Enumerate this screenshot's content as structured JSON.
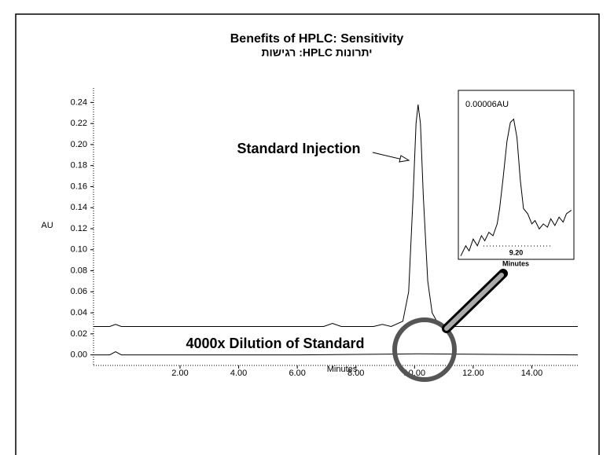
{
  "chart_data": [
    {
      "type": "line",
      "title": "Benefits of HPLC: Sensitivity",
      "subtitle": "יתרונות HPLC: רגישות",
      "x_label": "Minutes",
      "y_label": "AU",
      "annotations": [
        "Standard Injection",
        "4000x Dilution of Standard"
      ],
      "xlim": [
        -0.95,
        15.57
      ],
      "ylim": [
        -0.01,
        0.25
      ],
      "xticks": [
        {
          "value": 2,
          "label": "2.00"
        },
        {
          "value": 4,
          "label": "4.00"
        },
        {
          "value": 6,
          "label": "6.00"
        },
        {
          "value": 8,
          "label": "8.00"
        },
        {
          "value": 10,
          "label": "10.00"
        },
        {
          "value": 12,
          "label": "12.00"
        },
        {
          "value": 14,
          "label": "14.00"
        }
      ],
      "yticks": [
        {
          "value": 0,
          "label": "0.00"
        },
        0.02,
        0.04,
        0.06,
        0.08,
        {
          "value": 0.1,
          "label": "0.10"
        },
        0.12,
        0.14,
        0.16,
        0.18,
        {
          "value": 0.2,
          "label": "0.20"
        },
        0.22,
        0.24
      ],
      "series": [
        {
          "color": "#000000",
          "x": [
            -0.95,
            -0.4,
            -0.2,
            0.0,
            0.5,
            2,
            4,
            6,
            6.9,
            7.2,
            7.5,
            8.2,
            8.6,
            8.9,
            9.2,
            9.6,
            9.8,
            9.95,
            10.05,
            10.12,
            10.2,
            10.3,
            10.45,
            10.6,
            10.8,
            11.2,
            15.57
          ],
          "values": [
            0.027,
            0.027,
            0.029,
            0.027,
            0.027,
            0.027,
            0.027,
            0.027,
            0.027,
            0.03,
            0.027,
            0.027,
            0.027,
            0.029,
            0.027,
            0.032,
            0.06,
            0.15,
            0.22,
            0.238,
            0.22,
            0.15,
            0.07,
            0.04,
            0.03,
            0.027,
            0.027
          ]
        },
        {
          "color": "#000000",
          "x": [
            -0.95,
            -0.4,
            -0.2,
            0.0,
            0.5,
            6,
            10.1,
            15.57
          ],
          "values": [
            0,
            0,
            0.003,
            0,
            0,
            0,
            0.001,
            0
          ]
        }
      ]
    },
    {
      "type": "line",
      "annotation": "0.00006AU",
      "x_label": "Minutes",
      "xlim": [
        8.5,
        9.9
      ],
      "ylim": [
        0,
        1
      ],
      "xticks": [
        {
          "value": 9.2,
          "label": "9.20"
        }
      ],
      "series": [
        {
          "color": "#000000",
          "x": [
            8.53,
            8.59,
            8.63,
            8.68,
            8.73,
            8.78,
            8.82,
            8.87,
            8.92,
            8.97,
            9.0,
            9.04,
            9.09,
            9.13,
            9.17,
            9.21,
            9.25,
            9.29,
            9.34,
            9.39,
            9.43,
            9.48,
            9.53,
            9.58,
            9.62,
            9.67,
            9.72,
            9.77,
            9.81,
            9.87
          ],
          "values": [
            0.02,
            0.08,
            0.05,
            0.12,
            0.08,
            0.14,
            0.11,
            0.16,
            0.14,
            0.21,
            0.3,
            0.47,
            0.7,
            0.81,
            0.83,
            0.72,
            0.47,
            0.3,
            0.27,
            0.21,
            0.23,
            0.18,
            0.21,
            0.19,
            0.24,
            0.2,
            0.25,
            0.22,
            0.27,
            0.29
          ]
        }
      ]
    }
  ]
}
